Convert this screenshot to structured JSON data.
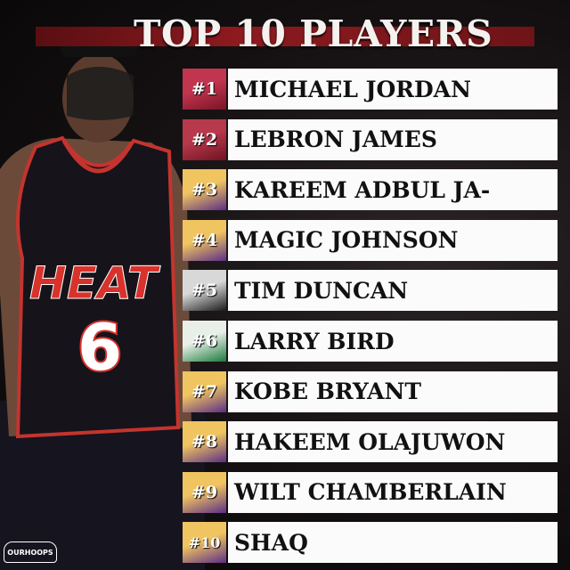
{
  "title": "TOP 10 PLAYERS",
  "players": [
    {
      "rank": "#1",
      "name": "MICHAEL JORDAN",
      "badge_colors": [
        "#c2354f",
        "#7a1426"
      ]
    },
    {
      "rank": "#2",
      "name": "LEBRON JAMES",
      "badge_colors": [
        "#b8384c",
        "#6e1222"
      ]
    },
    {
      "rank": "#3",
      "name": "KAREEM ADBUL JA-",
      "badge_colors": [
        "#f0c460",
        "#5b2e86"
      ]
    },
    {
      "rank": "#4",
      "name": "MAGIC JOHNSON",
      "badge_colors": [
        "#f0c460",
        "#5b2e86"
      ]
    },
    {
      "rank": "#5",
      "name": "TIM DUNCAN",
      "badge_colors": [
        "#d8d8d8",
        "#1a1a1a"
      ]
    },
    {
      "rank": "#6",
      "name": "LARRY BIRD",
      "badge_colors": [
        "#e8efe8",
        "#1b7a3a"
      ]
    },
    {
      "rank": "#7",
      "name": "KOBE BRYANT",
      "badge_colors": [
        "#f0c460",
        "#5b2e86"
      ]
    },
    {
      "rank": "#8",
      "name": "HAKEEM OLAJUWON",
      "badge_colors": [
        "#f0c460",
        "#5b2e86"
      ]
    },
    {
      "rank": "#9",
      "name": "WILT CHAMBERLAIN",
      "badge_colors": [
        "#f0c460",
        "#5b2e86"
      ]
    },
    {
      "rank": "#10",
      "name": "SHAQ",
      "badge_colors": [
        "#f0c460",
        "#5b2e86"
      ]
    }
  ],
  "jersey": {
    "team": "HEAT",
    "number": "6"
  },
  "watermark": "OURHOOPS"
}
